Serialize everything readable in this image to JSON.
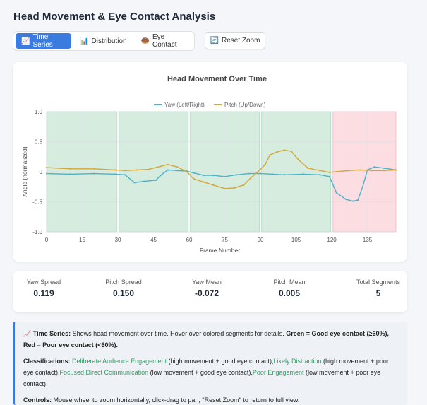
{
  "page": {
    "title": "Head Movement & Eye Contact Analysis"
  },
  "tabs": [
    {
      "icon": "📈",
      "icon_name": "chart-line-icon",
      "label": "Time Series",
      "active": true
    },
    {
      "icon": "📊",
      "icon_name": "bar-chart-icon",
      "label": "Distribution",
      "active": false
    },
    {
      "icon": "🍩",
      "icon_name": "donut-icon",
      "label": "Eye Contact",
      "active": false
    }
  ],
  "reset_button": {
    "icon": "🔄",
    "icon_name": "refresh-icon",
    "label": "Reset Zoom"
  },
  "chart_data": {
    "type": "line",
    "title": "Head Movement Over Time",
    "xlabel": "Frame Number",
    "ylabel": "Angle (normalized)",
    "xlim": [
      0,
      147
    ],
    "ylim": [
      -1.0,
      1.0
    ],
    "x_ticks": [
      0,
      15,
      30,
      45,
      60,
      75,
      90,
      105,
      120,
      135
    ],
    "y_ticks": [
      1.0,
      0.5,
      0.0,
      -0.5,
      -1.0
    ],
    "y_tick_labels": [
      "1.0",
      "0.5",
      "0",
      "-0.5",
      "-1.0"
    ],
    "grid": true,
    "legend_position": "top",
    "segments": [
      {
        "start": 0,
        "end": 29.5,
        "eye_contact": "good",
        "color": "#d5ecdf"
      },
      {
        "start": 30.5,
        "end": 59.5,
        "eye_contact": "good",
        "color": "#d5ecdf"
      },
      {
        "start": 60.5,
        "end": 89.5,
        "eye_contact": "good",
        "color": "#d5ecdf"
      },
      {
        "start": 90.5,
        "end": 119.5,
        "eye_contact": "good",
        "color": "#d5ecdf"
      },
      {
        "start": 120.5,
        "end": 147,
        "eye_contact": "poor",
        "color": "#fbdde2"
      }
    ],
    "series": [
      {
        "name": "Yaw (Left/Right)",
        "color": "#4ab3c9",
        "points": [
          [
            0,
            -0.03
          ],
          [
            10,
            -0.04
          ],
          [
            20,
            -0.03
          ],
          [
            29,
            -0.04
          ],
          [
            33,
            -0.05
          ],
          [
            37,
            -0.18
          ],
          [
            41,
            -0.16
          ],
          [
            46,
            -0.14
          ],
          [
            48,
            -0.06
          ],
          [
            51,
            0.03
          ],
          [
            55,
            0.02
          ],
          [
            59,
            0.01
          ],
          [
            62,
            -0.02
          ],
          [
            66,
            -0.06
          ],
          [
            70,
            -0.06
          ],
          [
            75,
            -0.08
          ],
          [
            80,
            -0.05
          ],
          [
            85,
            -0.03
          ],
          [
            90,
            -0.03
          ],
          [
            95,
            -0.04
          ],
          [
            100,
            -0.05
          ],
          [
            108,
            -0.04
          ],
          [
            115,
            -0.05
          ],
          [
            119,
            -0.08
          ],
          [
            122,
            -0.35
          ],
          [
            126,
            -0.46
          ],
          [
            129,
            -0.49
          ],
          [
            131,
            -0.47
          ],
          [
            133,
            -0.25
          ],
          [
            135,
            0.03
          ],
          [
            138,
            0.08
          ],
          [
            142,
            0.06
          ],
          [
            147,
            0.03
          ]
        ]
      },
      {
        "name": "Pitch (Up/Down)",
        "color": "#d4a73a",
        "points": [
          [
            0,
            0.07
          ],
          [
            10,
            0.05
          ],
          [
            20,
            0.05
          ],
          [
            29,
            0.03
          ],
          [
            33,
            0.02
          ],
          [
            38,
            0.03
          ],
          [
            43,
            0.04
          ],
          [
            48,
            0.09
          ],
          [
            51,
            0.12
          ],
          [
            55,
            0.08
          ],
          [
            59,
            0.0
          ],
          [
            62,
            -0.12
          ],
          [
            66,
            -0.17
          ],
          [
            70,
            -0.22
          ],
          [
            75,
            -0.28
          ],
          [
            79,
            -0.27
          ],
          [
            83,
            -0.22
          ],
          [
            86,
            -0.1
          ],
          [
            89,
            0.0
          ],
          [
            92,
            0.12
          ],
          [
            94,
            0.28
          ],
          [
            97,
            0.33
          ],
          [
            100,
            0.36
          ],
          [
            103,
            0.34
          ],
          [
            106,
            0.2
          ],
          [
            110,
            0.06
          ],
          [
            115,
            0.02
          ],
          [
            119,
            -0.01
          ],
          [
            122,
            0.0
          ],
          [
            127,
            0.02
          ],
          [
            132,
            0.03
          ],
          [
            137,
            0.02
          ],
          [
            142,
            0.02
          ],
          [
            147,
            0.03
          ]
        ]
      }
    ]
  },
  "stats": [
    {
      "label": "Yaw Spread",
      "value": "0.119"
    },
    {
      "label": "Pitch Spread",
      "value": "0.150"
    },
    {
      "label": "Yaw Mean",
      "value": "-0.072"
    },
    {
      "label": "Pitch Mean",
      "value": "0.005"
    },
    {
      "label": "Total Segments",
      "value": "5"
    }
  ],
  "info": {
    "icon": "📈",
    "ts_title": "Time Series:",
    "ts_text": " Shows head movement over time. Hover over colored segments for details. ",
    "ts_legend": "Green = Good eye contact (≥60%), Red = Poor eye contact (<60%).",
    "class_title": "Classifications:",
    "classes": [
      {
        "name": "Deliberate Audience Engagement",
        "desc": " (high movement + good eye contact),"
      },
      {
        "name": "Likely Distraction",
        "desc": " (high movement + poor eye contact),"
      },
      {
        "name": "Focused Direct Communication",
        "desc": " (low movement + good eye contact),"
      },
      {
        "name": "Poor Engagement",
        "desc": " (low movement + poor eye contact)."
      }
    ],
    "controls_title": "Controls:",
    "controls_text": " Mouse wheel to zoom horizontally, click-drag to pan, \"Reset Zoom\" to return to full view."
  }
}
